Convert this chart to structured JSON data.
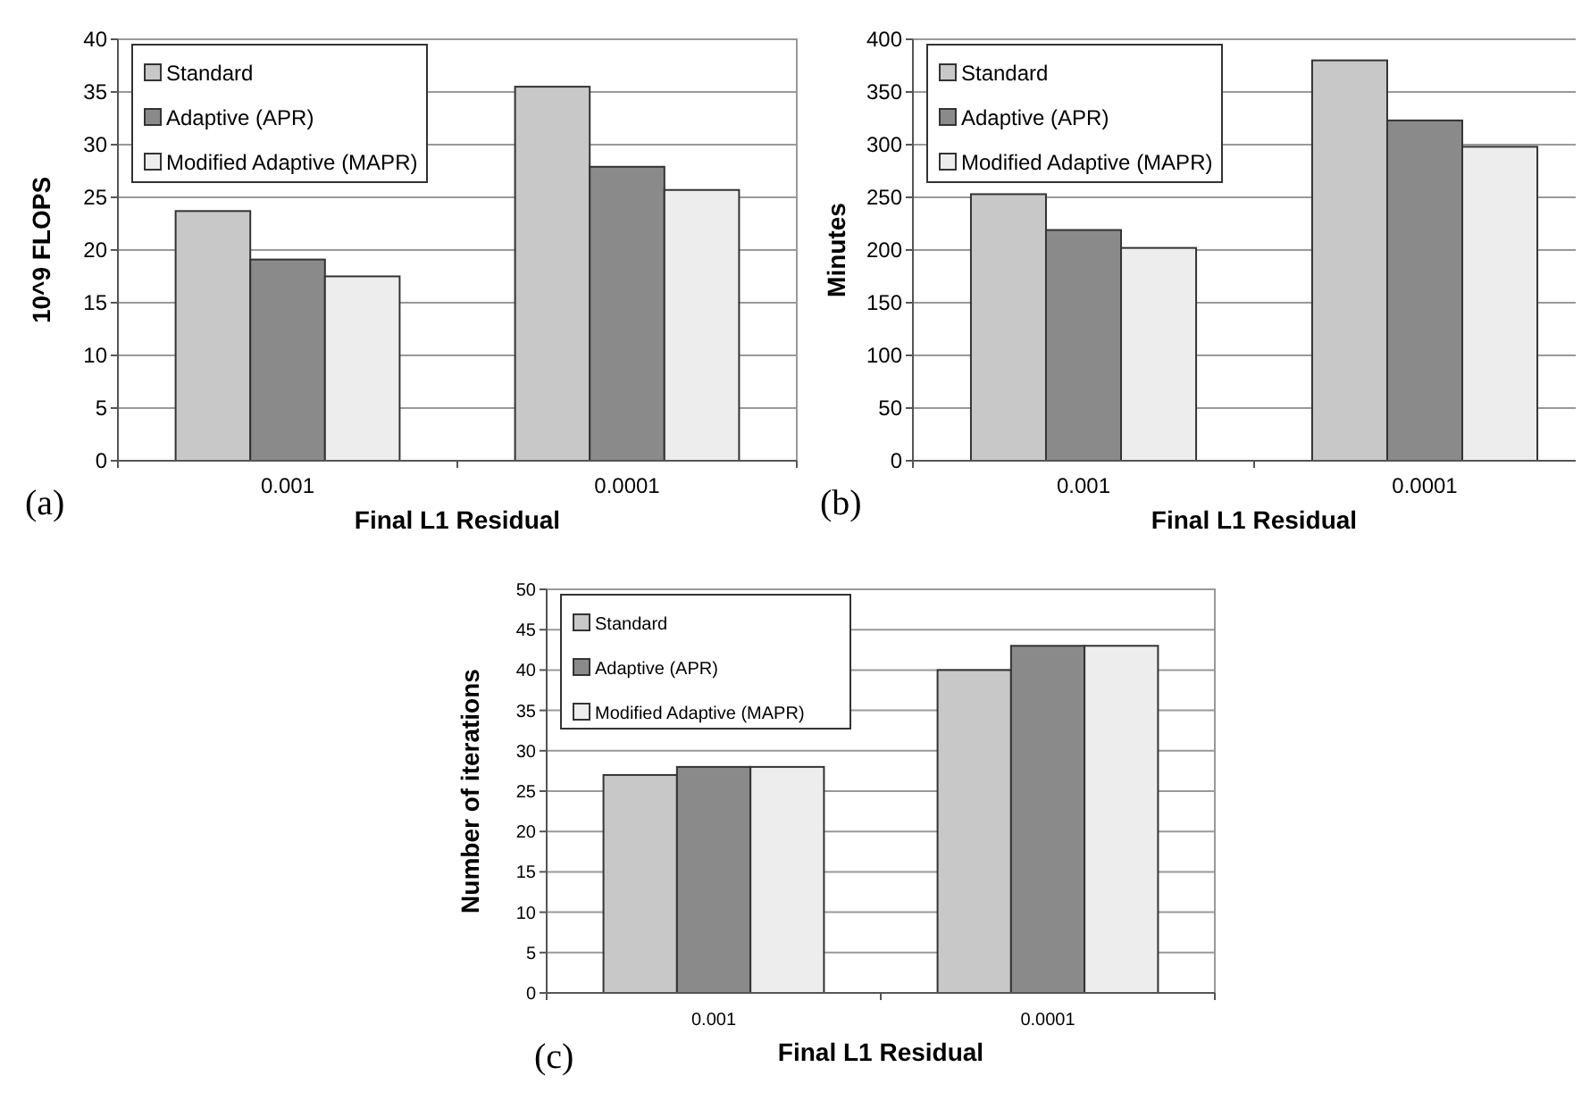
{
  "chart_data": [
    {
      "type": "bar",
      "xlabel": "Final L1 Residual",
      "ylabel": "10^9 FLOPS",
      "categories": [
        "0.001",
        "0.0001"
      ],
      "series": [
        {
          "name": "Standard",
          "color": "#c8c8c8",
          "values": [
            23.7,
            35.5
          ]
        },
        {
          "name": "Adaptive (APR)",
          "color": "#8a8a8a",
          "values": [
            19.1,
            27.9
          ]
        },
        {
          "name": "Modified Adaptive (MAPR)",
          "color": "#ededed",
          "values": [
            17.5,
            25.7
          ]
        }
      ],
      "ylim": [
        0,
        40
      ],
      "yticks": [
        0,
        5,
        10,
        15,
        20,
        25,
        30,
        35,
        40
      ],
      "grid": "y",
      "legend": "top left",
      "annotations": [
        "(a)"
      ]
    },
    {
      "type": "bar",
      "xlabel": "Final L1 Residual",
      "ylabel": "Minutes",
      "categories": [
        "0.001",
        "0.0001"
      ],
      "series": [
        {
          "name": "Standard",
          "color": "#c8c8c8",
          "values": [
            253,
            380
          ]
        },
        {
          "name": "Adaptive (APR)",
          "color": "#8a8a8a",
          "values": [
            219,
            323
          ]
        },
        {
          "name": "Modified Adaptive (MAPR)",
          "color": "#ededed",
          "values": [
            202,
            298
          ]
        }
      ],
      "ylim": [
        0,
        400
      ],
      "yticks": [
        0,
        50,
        100,
        150,
        200,
        250,
        300,
        350,
        400
      ],
      "grid": "y",
      "legend": "top left",
      "annotations": [
        "(b)"
      ]
    },
    {
      "type": "bar",
      "xlabel": "Final L1 Residual",
      "ylabel": "Number of iterations",
      "categories": [
        "0.001",
        "0.0001"
      ],
      "series": [
        {
          "name": "Standard",
          "color": "#c8c8c8",
          "values": [
            27,
            40
          ]
        },
        {
          "name": "Adaptive (APR)",
          "color": "#8a8a8a",
          "values": [
            28,
            43
          ]
        },
        {
          "name": "Modified Adaptive (MAPR)",
          "color": "#ededed",
          "values": [
            28,
            43
          ]
        }
      ],
      "ylim": [
        0,
        50
      ],
      "yticks": [
        0,
        5,
        10,
        15,
        20,
        25,
        30,
        35,
        40,
        45,
        50
      ],
      "grid": "y",
      "legend": "top left",
      "annotations": [
        "(c)"
      ]
    }
  ]
}
